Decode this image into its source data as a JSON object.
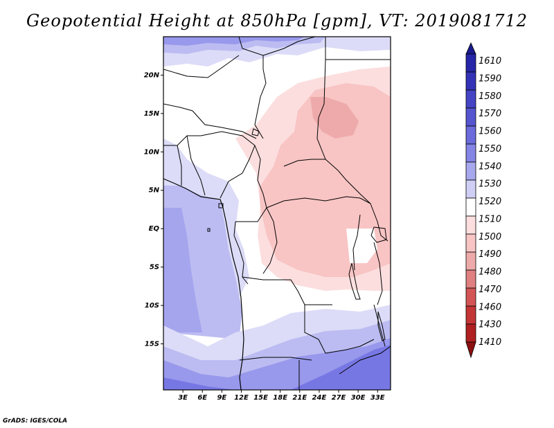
{
  "title": "Geopotential Height at 850hPa [gpm], VT: 2019081712",
  "credit": "GrADS: IGES/COLA",
  "map": {
    "lon_range": [
      0,
      35
    ],
    "lat_range": [
      -21,
      25
    ],
    "lat_ticks": [
      {
        "value": 20,
        "label": "20N"
      },
      {
        "value": 15,
        "label": "15N"
      },
      {
        "value": 10,
        "label": "10N"
      },
      {
        "value": 5,
        "label": "5N"
      },
      {
        "value": 0,
        "label": "EQ"
      },
      {
        "value": -5,
        "label": "5S"
      },
      {
        "value": -10,
        "label": "10S"
      },
      {
        "value": -15,
        "label": "15S"
      }
    ],
    "lon_ticks": [
      {
        "value": 3,
        "label": "3E"
      },
      {
        "value": 6,
        "label": "6E"
      },
      {
        "value": 9,
        "label": "9E"
      },
      {
        "value": 12,
        "label": "12E"
      },
      {
        "value": 15,
        "label": "15E"
      },
      {
        "value": 18,
        "label": "18E"
      },
      {
        "value": 21,
        "label": "21E"
      },
      {
        "value": 24,
        "label": "24E"
      },
      {
        "value": 27,
        "label": "27E"
      },
      {
        "value": 30,
        "label": "30E"
      },
      {
        "value": 33,
        "label": "33E"
      }
    ]
  },
  "colorbar": {
    "levels": [
      "1610",
      "1590",
      "1580",
      "1570",
      "1560",
      "1550",
      "1540",
      "1530",
      "1520",
      "1510",
      "1500",
      "1490",
      "1480",
      "1470",
      "1460",
      "1430",
      "1410"
    ],
    "colors": [
      "#1a1a8c",
      "#2626a8",
      "#3333b8",
      "#4444c4",
      "#5555d0",
      "#6b6bdc",
      "#8585e6",
      "#a8a8ee",
      "#cfcff6",
      "#ffffff",
      "#fcdede",
      "#f8c4c4",
      "#eeaaaa",
      "#e08080",
      "#d45555",
      "#c43535",
      "#b02020",
      "#8c1010"
    ]
  },
  "colors": {
    "deep_blue": "#7777e4",
    "mid_blue": "#9898ec",
    "light_blue": "#bcbcf2",
    "pale_blue": "#dcdcf8",
    "pale_pink": "#fcdede",
    "pink": "#f8c4c4",
    "rose": "#eeaaaa",
    "border": "#000000"
  }
}
